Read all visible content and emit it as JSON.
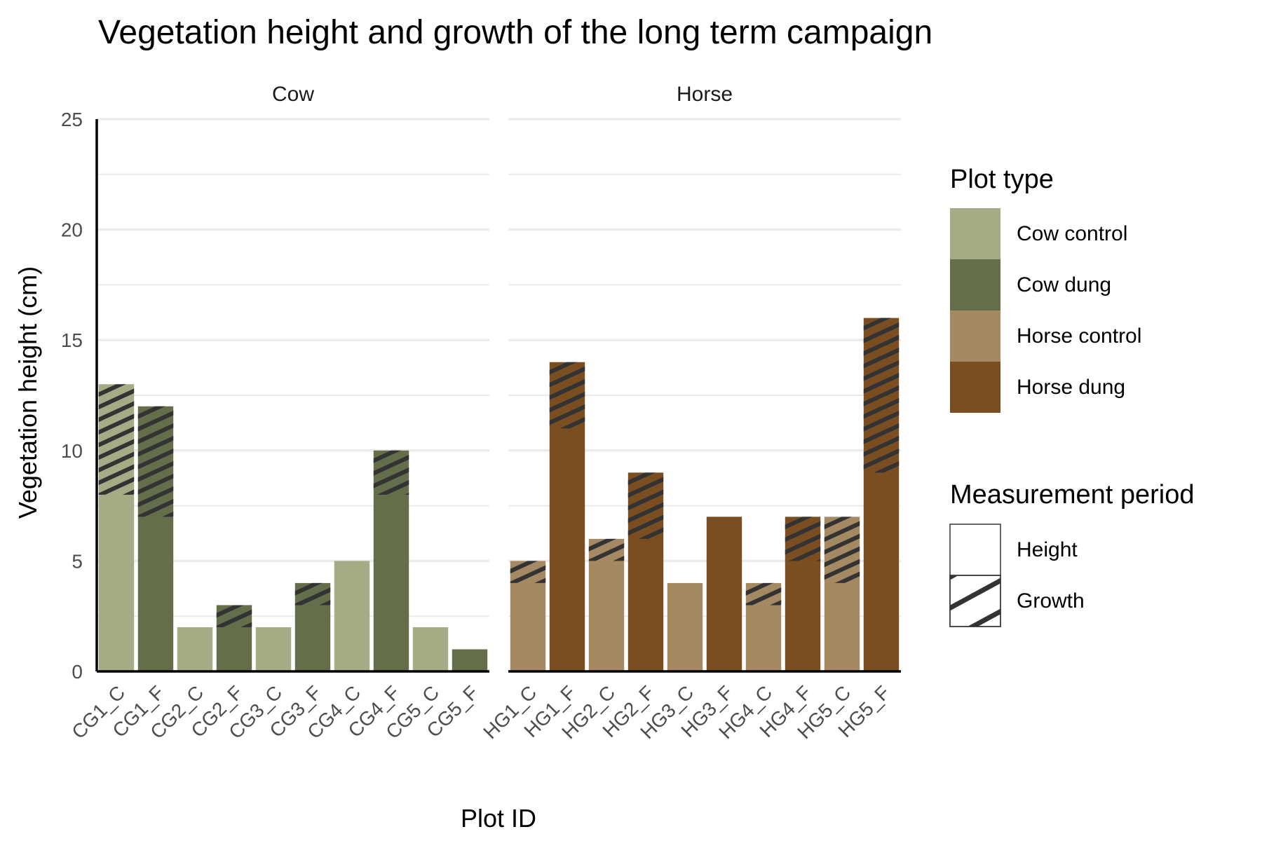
{
  "chart_data": {
    "type": "bar",
    "title": "Vegetation height and growth of the long term campaign",
    "xlabel": "Plot ID",
    "ylabel": "Vegetation height (cm)",
    "ylim": [
      0,
      25
    ],
    "yticks": [
      0,
      5,
      10,
      15,
      20,
      25
    ],
    "grid": true,
    "legend_position": "right",
    "panels": [
      {
        "name": "Cow",
        "bars": [
          {
            "label": "CG1_C",
            "value": 13,
            "type": "Cow control",
            "period": "Growth",
            "growth_from": 8
          },
          {
            "label": "CG1_F",
            "value": 12,
            "type": "Cow dung",
            "period": "Growth",
            "growth_from": 7
          },
          {
            "label": "CG2_C",
            "value": 2,
            "type": "Cow control",
            "period": "Height"
          },
          {
            "label": "CG2_F",
            "value": 3,
            "type": "Cow dung",
            "period": "Growth",
            "growth_from": 2
          },
          {
            "label": "CG3_C",
            "value": 2,
            "type": "Cow control",
            "period": "Height"
          },
          {
            "label": "CG3_F",
            "value": 4,
            "type": "Cow dung",
            "period": "Growth",
            "growth_from": 3
          },
          {
            "label": "CG4_C",
            "value": 5,
            "type": "Cow control",
            "period": "Height"
          },
          {
            "label": "CG4_F",
            "value": 10,
            "type": "Cow dung",
            "period": "Growth",
            "growth_from": 8
          },
          {
            "label": "CG5_C",
            "value": 2,
            "type": "Cow control",
            "period": "Height"
          },
          {
            "label": "CG5_F",
            "value": 1,
            "type": "Cow dung",
            "period": "Height"
          }
        ]
      },
      {
        "name": "Horse",
        "bars": [
          {
            "label": "HG1_C",
            "value": 5,
            "type": "Horse control",
            "period": "Growth",
            "growth_from": 4
          },
          {
            "label": "HG1_F",
            "value": 14,
            "type": "Horse dung",
            "period": "Growth",
            "growth_from": 11
          },
          {
            "label": "HG2_C",
            "value": 6,
            "type": "Horse control",
            "period": "Growth",
            "growth_from": 5
          },
          {
            "label": "HG2_F",
            "value": 9,
            "type": "Horse dung",
            "period": "Growth",
            "growth_from": 6
          },
          {
            "label": "HG3_C",
            "value": 4,
            "type": "Horse control",
            "period": "Height"
          },
          {
            "label": "HG3_F",
            "value": 7,
            "type": "Horse dung",
            "period": "Height"
          },
          {
            "label": "HG4_C",
            "value": 4,
            "type": "Horse control",
            "period": "Growth",
            "growth_from": 3
          },
          {
            "label": "HG4_F",
            "value": 7,
            "type": "Horse dung",
            "period": "Growth",
            "growth_from": 5
          },
          {
            "label": "HG5_C",
            "value": 7,
            "type": "Horse control",
            "period": "Growth",
            "growth_from": 4
          },
          {
            "label": "HG5_F",
            "value": 16,
            "type": "Horse dung",
            "period": "Growth",
            "growth_from": 9
          }
        ]
      }
    ],
    "legend": {
      "plot_type_title": "Plot type",
      "plot_types": [
        {
          "name": "Cow control",
          "color": "#a5ab84"
        },
        {
          "name": "Cow dung",
          "color": "#656e4a"
        },
        {
          "name": "Horse control",
          "color": "#a58963"
        },
        {
          "name": "Horse dung",
          "color": "#7b4e22"
        }
      ],
      "period_title": "Measurement period",
      "periods": [
        {
          "name": "Height",
          "pattern": "none"
        },
        {
          "name": "Growth",
          "pattern": "stripe"
        }
      ]
    },
    "stripe_color": "#333333",
    "axis_color": "#000000",
    "grid_color": "#ebebeb"
  }
}
